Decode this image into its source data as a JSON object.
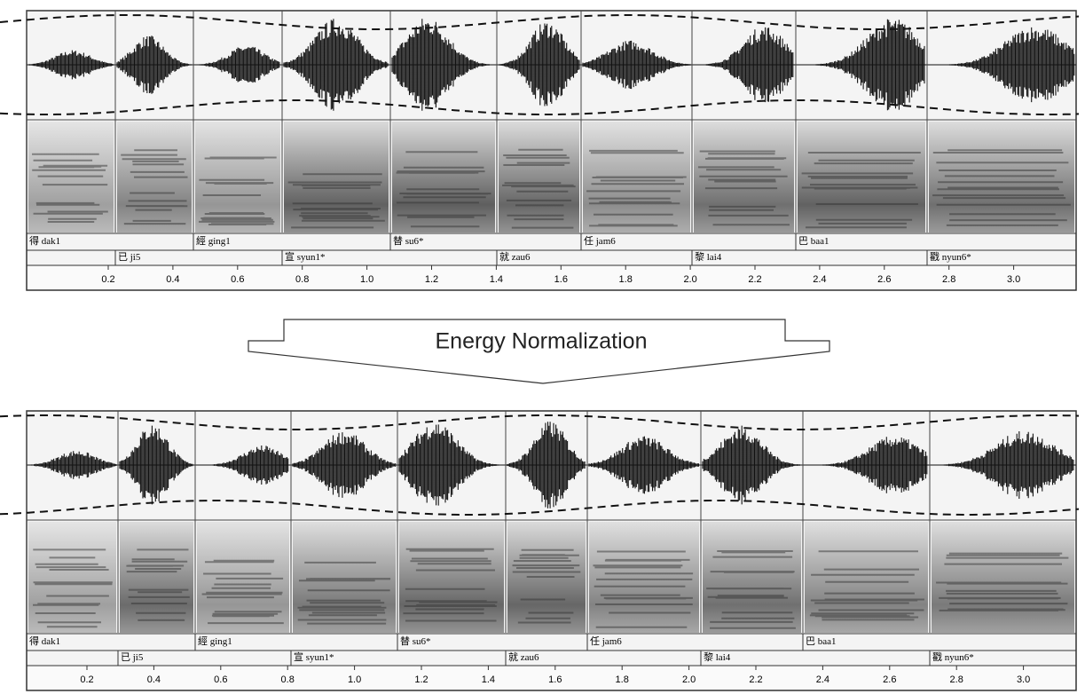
{
  "panels": [
    {
      "row1_labels": [
        "得 dak1",
        "經 ging1",
        "替 su6*",
        "任 jam6",
        "巴 baa1"
      ],
      "row2_labels": [
        "已 ji5",
        "宣 syun1*",
        "就 zau6",
        "黎 lai4",
        "戳 nyun6*"
      ],
      "time_ticks": [
        "0.2",
        "0.4",
        "0.6",
        "0.8",
        "1.0",
        "1.2",
        "1.4",
        "1.6",
        "1.8",
        "2.0",
        "2.2",
        "2.4",
        "2.6",
        "2.8",
        "3.0"
      ]
    },
    {
      "row1_labels": [
        "得 dak1",
        "經 ging1",
        "替 su6*",
        "任 jam6",
        "巴 baa1"
      ],
      "row2_labels": [
        "已 ji5",
        "宣 syun1*",
        "就 zau6",
        "黎 lai4",
        "戳 nyun6*"
      ],
      "time_ticks": [
        "0.2",
        "0.4",
        "0.6",
        "0.8",
        "1.0",
        "1.2",
        "1.4",
        "1.6",
        "1.8",
        "2.0",
        "2.2",
        "2.4",
        "2.6",
        "2.8",
        "3.0"
      ]
    }
  ],
  "arrow": {
    "label": "Energy Normalization"
  }
}
